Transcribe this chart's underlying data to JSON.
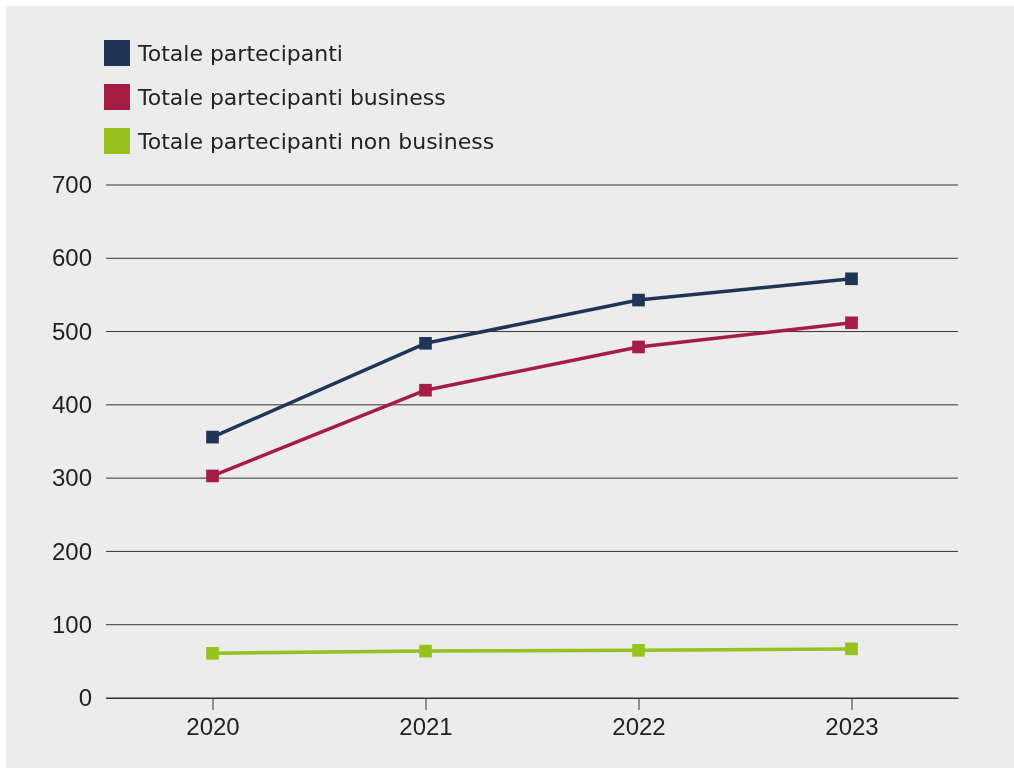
{
  "chart_data": {
    "type": "line",
    "categories": [
      "2020",
      "2021",
      "2022",
      "2023"
    ],
    "series": [
      {
        "name": "Totale partecipanti",
        "color": "#1f3556",
        "values": [
          356,
          484,
          543,
          572
        ]
      },
      {
        "name": "Totale partecipanti business",
        "color": "#a51c45",
        "values": [
          303,
          420,
          479,
          512
        ]
      },
      {
        "name": "Totale partecipanti non business",
        "color": "#97c11f",
        "values": [
          61,
          64,
          65,
          67
        ]
      }
    ],
    "ylim": [
      0,
      700
    ],
    "yticks": [
      0,
      100,
      200,
      300,
      400,
      500,
      600,
      700
    ],
    "grid": "y",
    "legend": "top left",
    "marker": "square",
    "line_style": "solid"
  }
}
